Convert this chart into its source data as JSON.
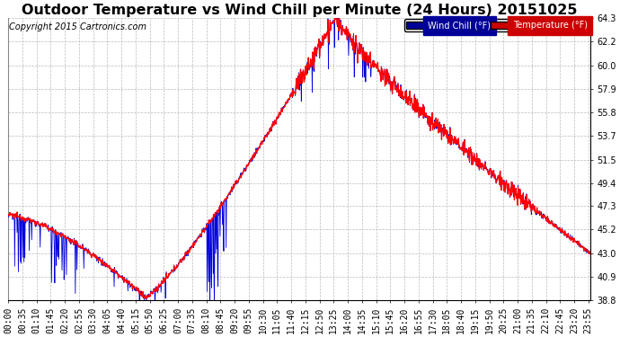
{
  "title": "Outdoor Temperature vs Wind Chill per Minute (24 Hours) 20151025",
  "copyright": "Copyright 2015 Cartronics.com",
  "ylabel_right_ticks": [
    38.8,
    40.9,
    43.0,
    45.2,
    47.3,
    49.4,
    51.5,
    53.7,
    55.8,
    57.9,
    60.0,
    62.2,
    64.3
  ],
  "ylim": [
    38.8,
    64.3
  ],
  "temp_color": "#ff0000",
  "wind_color": "#0000dd",
  "bg_color": "#ffffff",
  "grid_color": "#bbbbbb",
  "legend_wind_bg": "#000099",
  "legend_temp_bg": "#cc0000",
  "title_fontsize": 11.5,
  "copyright_fontsize": 7,
  "tick_fontsize": 7
}
